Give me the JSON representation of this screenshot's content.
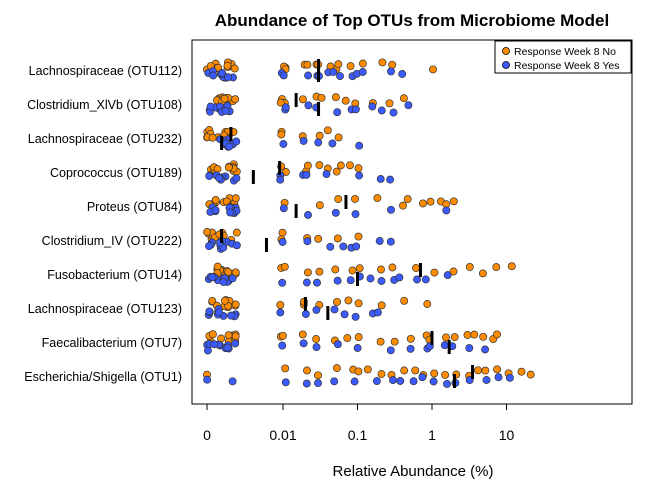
{
  "chart_data": {
    "type": "scatter",
    "title": "Abundance of Top OTUs from Microbiome Model",
    "xlabel": "Relative Abundance (%)",
    "ylabel": "",
    "x_scale": "log10 (zero shown at left)",
    "x_ticks": [
      "0",
      "0.01",
      "0.1",
      "1",
      "10"
    ],
    "legend": {
      "placement": "top-right",
      "entries": [
        {
          "label": "Response Week 8 No",
          "color": "#ff8c00"
        },
        {
          "label": "Response Week 8 Yes",
          "color": "#3b5bff"
        }
      ]
    },
    "categories": [
      "Lachnospiraceae (OTU112)",
      "Clostridium_XlVb (OTU108)",
      "Lachnospiraceae (OTU232)",
      "Coprococcus (OTU189)",
      "Proteus (OTU84)",
      "Clostridium_IV (OTU222)",
      "Fusobacterium (OTU14)",
      "Lachnospiraceae (OTU123)",
      "Faecalibacterium (OTU7)",
      "Escherichia/Shigella (OTU1)"
    ],
    "series": [
      {
        "name": "Response Week 8 No",
        "color": "#ff8c00",
        "points": [
          [
            "Lachnospiraceae (OTU112)",
            [
              0,
              0,
              0,
              0,
              0,
              0,
              0,
              0,
              0,
              0,
              0,
              0,
              0.01,
              0.01,
              0.01,
              0.02,
              0.02,
              0.03,
              0.03,
              0.04,
              0.05,
              0.06,
              0.08,
              0.12,
              0.2,
              0.3,
              1.0
            ]
          ],
          [
            "Clostridium_XlVb (OTU108)",
            [
              0,
              0,
              0,
              0,
              0,
              0,
              0,
              0,
              0,
              0,
              0,
              0,
              0.01,
              0.01,
              0.01,
              0.02,
              0.03,
              0.03,
              0.05,
              0.07,
              0.1,
              0.15,
              0.25,
              0.4
            ]
          ],
          [
            "Lachnospiraceae (OTU232)",
            [
              0,
              0,
              0,
              0,
              0,
              0,
              0,
              0,
              0,
              0,
              0,
              0,
              0,
              0.01,
              0.01,
              0.02,
              0.03,
              0.04,
              0.06
            ]
          ],
          [
            "Coprococcus (OTU189)",
            [
              0,
              0,
              0,
              0,
              0,
              0,
              0,
              0,
              0,
              0,
              0,
              0,
              0.01,
              0.01,
              0.02,
              0.02,
              0.03,
              0.04,
              0.05,
              0.06,
              0.08,
              0.1
            ]
          ],
          [
            "Proteus (OTU84)",
            [
              0,
              0,
              0,
              0,
              0,
              0,
              0,
              0,
              0,
              0,
              0,
              0.01,
              0.03,
              0.06,
              0.1,
              0.2,
              0.4,
              0.5,
              0.8,
              1.0,
              1.2,
              1.5,
              2.0
            ]
          ],
          [
            "Clostridium_IV (OTU222)",
            [
              0,
              0,
              0,
              0,
              0,
              0,
              0,
              0,
              0,
              0,
              0,
              0.01,
              0.01,
              0.02,
              0.03,
              0.05,
              0.1
            ]
          ],
          [
            "Fusobacterium (OTU14)",
            [
              0,
              0,
              0,
              0,
              0,
              0,
              0,
              0,
              0,
              0,
              0,
              0,
              0.01,
              0.01,
              0.02,
              0.03,
              0.05,
              0.08,
              0.1,
              0.2,
              0.3,
              0.6,
              1.0,
              2.0,
              3.0,
              5.0,
              8.0,
              12.0
            ]
          ],
          [
            "Lachnospiraceae (OTU123)",
            [
              0,
              0,
              0,
              0,
              0,
              0,
              0,
              0,
              0,
              0,
              0,
              0,
              0.01,
              0.02,
              0.02,
              0.03,
              0.05,
              0.07,
              0.1,
              0.2,
              0.4,
              0.8
            ]
          ],
          [
            "Faecalibacterium (OTU7)",
            [
              0,
              0,
              0,
              0,
              0,
              0,
              0,
              0,
              0,
              0,
              0,
              0,
              0.01,
              0.01,
              0.02,
              0.03,
              0.05,
              0.07,
              0.1,
              0.2,
              0.3,
              0.5,
              0.8,
              1.0,
              1.5,
              2.0,
              3.0,
              4.0,
              5.0,
              7.0,
              8.0
            ]
          ],
          [
            "Escherichia/Shigella (OTU1)",
            [
              0,
              0.01,
              0.02,
              0.03,
              0.05,
              0.08,
              0.1,
              0.15,
              0.2,
              0.3,
              0.4,
              0.6,
              0.8,
              1.0,
              1.5,
              2.0,
              3.0,
              4.0,
              5.0,
              7.0,
              10.0,
              15.0,
              20.0
            ]
          ]
        ],
        "medians": [
          0.03,
          0.015,
          0.002,
          0.009,
          0.07,
          0.0015,
          0.7,
          0.02,
          1.0,
          3.5
        ]
      },
      {
        "name": "Response Week 8 Yes",
        "color": "#3b5bff",
        "points": [
          [
            "Lachnospiraceae (OTU112)",
            [
              0,
              0,
              0,
              0,
              0,
              0,
              0,
              0,
              0,
              0,
              0,
              0.01,
              0.01,
              0.02,
              0.03,
              0.03,
              0.04,
              0.05,
              0.06,
              0.08,
              0.1,
              0.12,
              0.3,
              0.4
            ]
          ],
          [
            "Clostridium_XlVb (OTU108)",
            [
              0,
              0,
              0,
              0,
              0,
              0,
              0,
              0,
              0,
              0,
              0,
              0.01,
              0.01,
              0.02,
              0.03,
              0.05,
              0.08,
              0.1,
              0.15,
              0.2,
              0.3,
              0.5
            ]
          ],
          [
            "Lachnospiraceae (OTU232)",
            [
              0,
              0,
              0,
              0,
              0,
              0,
              0,
              0,
              0,
              0,
              0,
              0.01,
              0.02,
              0.03,
              0.05,
              0.1
            ]
          ],
          [
            "Coprococcus (OTU189)",
            [
              0,
              0,
              0,
              0,
              0,
              0,
              0,
              0,
              0,
              0,
              0,
              0.01,
              0.01,
              0.02,
              0.02,
              0.04,
              0.1,
              0.2,
              0.3
            ]
          ],
          [
            "Proteus (OTU84)",
            [
              0,
              0,
              0,
              0,
              0,
              0,
              0,
              0,
              0,
              0,
              0,
              0.01,
              0.02,
              0.05,
              0.1,
              0.3,
              1.5
            ]
          ],
          [
            "Clostridium_IV (OTU222)",
            [
              0,
              0,
              0,
              0,
              0,
              0,
              0,
              0,
              0,
              0,
              0,
              0.01,
              0.02,
              0.04,
              0.06,
              0.08,
              0.1,
              0.2,
              0.3
            ]
          ],
          [
            "Fusobacterium (OTU14)",
            [
              0,
              0,
              0,
              0,
              0,
              0,
              0,
              0,
              0,
              0,
              0,
              0.01,
              0.02,
              0.03,
              0.05,
              0.08,
              0.1,
              0.15,
              0.2,
              0.3,
              0.4,
              0.6,
              0.9,
              1.5
            ]
          ],
          [
            "Lachnospiraceae (OTU123)",
            [
              0,
              0,
              0,
              0,
              0,
              0,
              0,
              0,
              0,
              0,
              0,
              0.01,
              0.02,
              0.03,
              0.05,
              0.07,
              0.1,
              0.15,
              0.2
            ]
          ],
          [
            "Faecalibacterium (OTU7)",
            [
              0,
              0,
              0,
              0,
              0,
              0,
              0,
              0,
              0,
              0,
              0,
              0.01,
              0.02,
              0.03,
              0.05,
              0.1,
              0.3,
              0.5,
              0.8,
              1.0,
              1.5,
              2.0,
              3.0,
              5.0
            ]
          ],
          [
            "Escherichia/Shigella (OTU1)",
            [
              0,
              0,
              0.01,
              0.02,
              0.03,
              0.05,
              0.1,
              0.2,
              0.3,
              0.4,
              0.6,
              0.8,
              1.0,
              1.5,
              2.0,
              3.0,
              5.0,
              8.0,
              12.0
            ]
          ]
        ],
        "medians": [
          0.03,
          0.03,
          0.0015,
          0.004,
          0.015,
          0.006,
          0.1,
          0.04,
          1.7,
          2.0
        ]
      }
    ]
  }
}
